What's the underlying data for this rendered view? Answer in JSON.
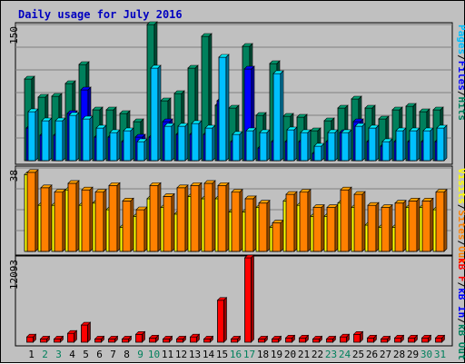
{
  "chart_data": {
    "type": "bar",
    "title": "Daily usage for July 2016",
    "categories": [
      "1",
      "2",
      "3",
      "4",
      "5",
      "6",
      "7",
      "8",
      "9",
      "10",
      "11",
      "12",
      "13",
      "14",
      "15",
      "16",
      "17",
      "18",
      "19",
      "20",
      "21",
      "22",
      "23",
      "24",
      "25",
      "26",
      "27",
      "28",
      "29",
      "30",
      "31"
    ],
    "weekend_days": [
      "2",
      "3",
      "9",
      "10",
      "16",
      "17",
      "23",
      "24",
      "30",
      "31"
    ],
    "colors": {
      "hits": "#00805c",
      "files": "#0000ff",
      "pages": "#00c0ff",
      "visits": "#ffff00",
      "sites": "#ff8000",
      "kbytes": "#ff0000",
      "title": "#0000c0",
      "background": "#c0c0c0",
      "weekday_label": "#000000",
      "weekend_label": "#00805c"
    },
    "panels": [
      {
        "name": "hits-files-pages",
        "ymax_label": "150",
        "ymax": 150,
        "legend": [
          {
            "text": "Pages",
            "color": "#00c0ff"
          },
          {
            "text": "/",
            "color": "#000000"
          },
          {
            "text": "Files",
            "color": "#0000ff"
          },
          {
            "text": "/",
            "color": "#000000"
          },
          {
            "text": "Hits",
            "color": "#00805c"
          }
        ],
        "series": [
          {
            "key": "hits",
            "values": [
              90,
              70,
              71,
              85,
              106,
              56,
              56,
              52,
              43,
              150,
              66,
              74,
              102,
              137,
              61,
              58,
              126,
              50,
              107,
              49,
              48,
              33,
              44,
              58,
              68,
              58,
              46,
              56,
              60,
              54,
              56
            ]
          },
          {
            "key": "files",
            "values": [
              36,
              28,
              28,
              52,
              78,
              26,
              26,
              21,
              26,
              26,
              43,
              29,
              29,
              29,
              66,
              21,
              101,
              14,
              21,
              21,
              21,
              8,
              21,
              31,
              43,
              21,
              16,
              21,
              21,
              21,
              21
            ]
          },
          {
            "key": "pages",
            "values": [
              54,
              44,
              44,
              50,
              46,
              36,
              31,
              33,
              21,
              102,
              38,
              38,
              41,
              36,
              114,
              29,
              33,
              31,
              96,
              34,
              31,
              16,
              31,
              31,
              38,
              36,
              21,
              33,
              33,
              33,
              36
            ]
          }
        ]
      },
      {
        "name": "visits-sites",
        "ymax_label": "38",
        "ymax": 38,
        "legend": [
          {
            "text": "Visits",
            "color": "#ffff00"
          },
          {
            "text": "/",
            "color": "#000000"
          },
          {
            "text": "Sites",
            "color": "#ff8000"
          },
          {
            "text": "/",
            "color": "#000000"
          },
          {
            "text": "Out",
            "color": "#ff8000"
          }
        ],
        "series": [
          {
            "key": "visits",
            "values": [
              35,
              21,
              21,
              28,
              21,
              22,
              19,
              11,
              16,
              24,
              20,
              17,
              25,
              24,
              24,
              18,
              18,
              20,
              11,
              23,
              21,
              16,
              16,
              22,
              20,
              12,
              11,
              11,
              20,
              20,
              19
            ]
          },
          {
            "key": "sites",
            "values": [
              36,
              29,
              27,
              31,
              28,
              27,
              30,
              23,
              19,
              30,
              25,
              29,
              30,
              31,
              30,
              27,
              24,
              22,
              13,
              26,
              27,
              20,
              20,
              28,
              26,
              21,
              20,
              22,
              23,
              23,
              27
            ]
          }
        ]
      },
      {
        "name": "kbytes",
        "ymax_label": "12093",
        "ymax": 12093,
        "legend": [
          {
            "text": "kB F",
            "color": "#ff0000"
          },
          {
            "text": "/",
            "color": "#000000"
          },
          {
            "text": "kB In",
            "color": "#0000ff"
          },
          {
            "text": "/",
            "color": "#000000"
          },
          {
            "text": "kB Out",
            "color": "#00805c"
          }
        ],
        "series": [
          {
            "key": "kbytes",
            "values": [
              756,
              468,
              468,
              1278,
              2466,
              468,
              468,
              468,
              1134,
              612,
              468,
              468,
              756,
              468,
              6012,
              468,
              12093,
              468,
              468,
              612,
              612,
              468,
              468,
              756,
              1134,
              612,
              468,
              612,
              612,
              612,
              612
            ]
          }
        ]
      }
    ]
  }
}
